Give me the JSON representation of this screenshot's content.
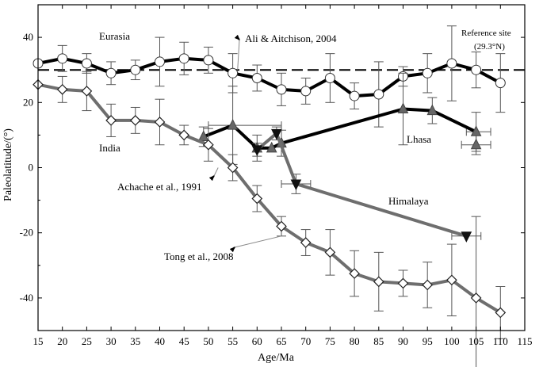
{
  "chart_data": {
    "type": "line",
    "xlabel": "Age/Ma",
    "ylabel": "Paleolatitude/(°)",
    "xlim": [
      15,
      115
    ],
    "ylim": [
      -50,
      50
    ],
    "xticks": [
      15,
      20,
      25,
      30,
      35,
      40,
      45,
      50,
      55,
      60,
      65,
      70,
      75,
      80,
      85,
      90,
      95,
      100,
      105,
      110,
      115
    ],
    "yticks": [
      -40,
      -20,
      0,
      20,
      40
    ],
    "xtick_labels": [
      "15",
      "20",
      "25",
      "30",
      "35",
      "40",
      "45",
      "50",
      "55",
      "60",
      "65",
      "70",
      "75",
      "80",
      "85",
      "90",
      "95",
      "100",
      "105",
      "110",
      "115"
    ],
    "ytick_labels": [
      "-40",
      "-20",
      "0",
      "20",
      "40"
    ],
    "reference_line": {
      "y": 30,
      "style": "dashed"
    },
    "series": [
      {
        "name": "Eurasia",
        "color": "#000000",
        "marker": "circle",
        "points": [
          {
            "x": 15,
            "y": 32,
            "err": 0
          },
          {
            "x": 20,
            "y": 33.5,
            "err": 4
          },
          {
            "x": 25,
            "y": 32,
            "err": 3
          },
          {
            "x": 30,
            "y": 29,
            "err": 3.5
          },
          {
            "x": 35,
            "y": 30,
            "err": 3
          },
          {
            "x": 40,
            "y": 32.5,
            "err": 7.5
          },
          {
            "x": 45,
            "y": 33.5,
            "err": 5
          },
          {
            "x": 50,
            "y": 33,
            "err": 4
          },
          {
            "x": 55,
            "y": 29,
            "err": 6
          },
          {
            "x": 60,
            "y": 27.5,
            "err": 4
          },
          {
            "x": 65,
            "y": 24,
            "err": 5
          },
          {
            "x": 70,
            "y": 23.5,
            "err": 4
          },
          {
            "x": 75,
            "y": 27.5,
            "err": 7.5
          },
          {
            "x": 80,
            "y": 22,
            "err": 4
          },
          {
            "x": 85,
            "y": 22.5,
            "err": 10
          },
          {
            "x": 90,
            "y": 28,
            "err": 3
          },
          {
            "x": 95,
            "y": 29,
            "err": 6
          },
          {
            "x": 100,
            "y": 32,
            "err": 11.5
          },
          {
            "x": 105,
            "y": 30,
            "err": 5.5
          },
          {
            "x": 110,
            "y": 26,
            "err": 9
          }
        ]
      },
      {
        "name": "Lhasa",
        "color": "#000000",
        "marker": "triangle-up",
        "points": [
          {
            "x": 49,
            "y": 9.5,
            "err": 3
          },
          {
            "x": 55,
            "y": 13,
            "err": 12
          },
          {
            "x": 60,
            "y": 6,
            "err": 4
          },
          {
            "x": 63,
            "y": 6,
            "err": 0
          },
          {
            "x": 65,
            "y": 7.5,
            "err": 4
          },
          {
            "x": 90,
            "y": 18,
            "err": 11
          },
          {
            "x": 96,
            "y": 17.5,
            "err": 4
          },
          {
            "x": 105,
            "y": 11,
            "err": 6
          },
          {
            "x": 105,
            "y": 7,
            "err": 3
          }
        ]
      },
      {
        "name": "Himalaya",
        "color": "#7f7f7f",
        "marker": "triangle-down",
        "points": [
          {
            "x": 60,
            "y": 5.5,
            "err": 2
          },
          {
            "x": 64,
            "y": 10.5,
            "err": 2
          },
          {
            "x": 68,
            "y": -5,
            "err": 3
          },
          {
            "x": 103,
            "y": -21,
            "err": 0
          }
        ]
      },
      {
        "name": "India",
        "color": "#7f7f7f",
        "marker": "diamond",
        "points": [
          {
            "x": 15,
            "y": 25.5,
            "err": 0
          },
          {
            "x": 20,
            "y": 24,
            "err": 4
          },
          {
            "x": 25,
            "y": 23.5,
            "err": 6
          },
          {
            "x": 30,
            "y": 14.5,
            "err": 5
          },
          {
            "x": 35,
            "y": 14.5,
            "err": 4
          },
          {
            "x": 40,
            "y": 14,
            "err": 7
          },
          {
            "x": 45,
            "y": 10,
            "err": 3
          },
          {
            "x": 50,
            "y": 7,
            "err": 5
          },
          {
            "x": 55,
            "y": 0,
            "err": 4
          },
          {
            "x": 60,
            "y": -9.5,
            "err": 4
          },
          {
            "x": 65,
            "y": -18,
            "err": 3
          },
          {
            "x": 70,
            "y": -23,
            "err": 4
          },
          {
            "x": 75,
            "y": -26,
            "err": 7
          },
          {
            "x": 80,
            "y": -32.5,
            "err": 7
          },
          {
            "x": 85,
            "y": -35,
            "err": 9
          },
          {
            "x": 90,
            "y": -35.5,
            "err": 4
          },
          {
            "x": 95,
            "y": -36,
            "err": 7
          },
          {
            "x": 100,
            "y": -34.5,
            "err": 11
          },
          {
            "x": 105,
            "y": -40,
            "err": 25
          },
          {
            "x": 110,
            "y": -44.5,
            "err": 8
          }
        ]
      }
    ],
    "horizontal_error_bars": [
      {
        "series": "Lhasa",
        "x_from": 103,
        "x_to": 108,
        "y": 11
      },
      {
        "series": "Lhasa",
        "x_from": 102,
        "x_to": 108,
        "y": 7
      },
      {
        "series": "Lhasa",
        "x_from": 50,
        "x_to": 65,
        "y": 13
      },
      {
        "series": "Himalaya",
        "x_from": 100,
        "x_to": 106,
        "y": -21
      },
      {
        "series": "Himalaya",
        "x_from": 65,
        "x_to": 71,
        "y": -5
      }
    ],
    "annotations": [
      {
        "text": "Eurasia",
        "x": 22,
        "y": 39,
        "arrow": false
      },
      {
        "text": "Ali & Aitchison, 2004",
        "x": 73,
        "y": 38,
        "arrow": true,
        "arrow_to": [
          56,
          30
        ]
      },
      {
        "text": "Reference site",
        "x": 107,
        "y": 40,
        "arrow": false
      },
      {
        "text": "(29.3°N)",
        "x": 107,
        "y": 35.5,
        "arrow": false
      },
      {
        "text": "India",
        "x": 32,
        "y": 5.5,
        "arrow": false
      },
      {
        "text": "Lhasa",
        "x": 89,
        "y": 8,
        "arrow": false
      },
      {
        "text": "Achache et al., 1991",
        "x": 45,
        "y": -6,
        "arrow": true,
        "arrow_to": [
          52,
          0
        ]
      },
      {
        "text": "Himalaya",
        "x": 93,
        "y": -10.5,
        "arrow": false
      },
      {
        "text": "Tong et al., 2008",
        "x": 55,
        "y": -28.5,
        "arrow": true,
        "arrow_to": [
          65,
          -21
        ]
      }
    ]
  }
}
